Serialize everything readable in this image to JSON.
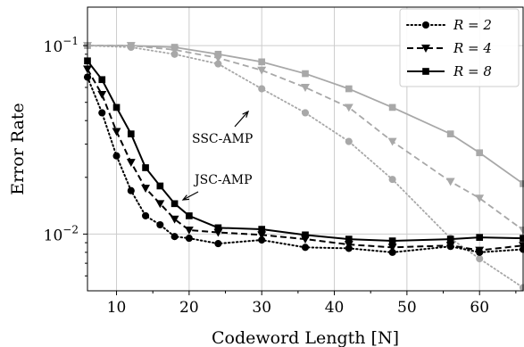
{
  "chart_data": {
    "type": "line",
    "title": "",
    "xlabel": "Codeword Length [N]",
    "ylabel": "Error Rate",
    "xlim": [
      6,
      66
    ],
    "ylim": [
      0.005,
      0.16
    ],
    "yscale": "log",
    "grid": true,
    "legend_position": "top-right",
    "x_ticks": [
      10,
      20,
      30,
      40,
      50,
      60
    ],
    "x_tick_labels": [
      "10",
      "20",
      "30",
      "40",
      "50",
      "60"
    ],
    "y_ticks": [
      0.01,
      0.1
    ],
    "y_tick_labels": [
      {
        "base": "10",
        "exp": "−2"
      },
      {
        "base": "10",
        "exp": "−1"
      }
    ],
    "legend": [
      {
        "label": "R = 2",
        "marker": "circle",
        "dash": "dotted"
      },
      {
        "label": "R = 4",
        "marker": "triangle-down",
        "dash": "dashed"
      },
      {
        "label": "R = 8",
        "marker": "square",
        "dash": "solid"
      }
    ],
    "annotations": [
      {
        "text": "SSC-AMP",
        "x": 30,
        "y": 0.06
      },
      {
        "text": "JSC-AMP",
        "x": 20,
        "y": 0.013
      }
    ],
    "colors": {
      "jsc": "#000000",
      "ssc": "#a8a8a8",
      "grid": "#cccccc"
    },
    "series": [
      {
        "group": "JSC-AMP",
        "legend_index": 0,
        "marker": "circle",
        "dash": "dotted",
        "x": [
          6,
          8,
          10,
          12,
          14,
          16,
          18,
          20,
          24,
          30,
          36,
          42,
          48,
          56,
          60,
          66
        ],
        "y": [
          0.068,
          0.044,
          0.026,
          0.017,
          0.0125,
          0.0112,
          0.0097,
          0.0095,
          0.0089,
          0.0093,
          0.0085,
          0.0084,
          0.008,
          0.0086,
          0.008,
          0.0083
        ]
      },
      {
        "group": "JSC-AMP",
        "legend_index": 1,
        "marker": "triangle-down",
        "dash": "dashed",
        "x": [
          6,
          8,
          10,
          12,
          14,
          16,
          18,
          20,
          24,
          30,
          36,
          42,
          48,
          56,
          60,
          66
        ],
        "y": [
          0.075,
          0.055,
          0.035,
          0.024,
          0.0175,
          0.0145,
          0.012,
          0.0105,
          0.0102,
          0.0099,
          0.0094,
          0.0088,
          0.0085,
          0.0087,
          0.0082,
          0.0087
        ]
      },
      {
        "group": "JSC-AMP",
        "legend_index": 2,
        "marker": "square",
        "dash": "solid",
        "x": [
          6,
          8,
          10,
          12,
          14,
          16,
          18,
          20,
          24,
          30,
          36,
          42,
          48,
          56,
          60,
          66
        ],
        "y": [
          0.083,
          0.066,
          0.047,
          0.034,
          0.0225,
          0.018,
          0.0145,
          0.0125,
          0.0108,
          0.0106,
          0.0099,
          0.0094,
          0.0092,
          0.0094,
          0.0096,
          0.0095
        ]
      },
      {
        "group": "SSC-AMP",
        "marker": "circle",
        "dash": "dotted",
        "x": [
          6,
          12,
          18,
          24,
          30,
          36,
          42,
          48,
          56,
          60,
          66
        ],
        "y": [
          0.1,
          0.098,
          0.09,
          0.08,
          0.059,
          0.044,
          0.031,
          0.0195,
          0.0095,
          0.0074,
          0.0052
        ]
      },
      {
        "group": "SSC-AMP",
        "marker": "triangle-down",
        "dash": "dashed",
        "x": [
          6,
          12,
          18,
          24,
          30,
          36,
          42,
          48,
          56,
          60,
          66
        ],
        "y": [
          0.1,
          0.1,
          0.095,
          0.086,
          0.074,
          0.06,
          0.047,
          0.031,
          0.019,
          0.0155,
          0.0105
        ]
      },
      {
        "group": "SSC-AMP",
        "marker": "square",
        "dash": "solid",
        "x": [
          6,
          12,
          18,
          24,
          30,
          36,
          42,
          48,
          56,
          60,
          66
        ],
        "y": [
          0.1,
          0.1,
          0.098,
          0.09,
          0.082,
          0.071,
          0.059,
          0.047,
          0.034,
          0.027,
          0.0185
        ]
      }
    ]
  }
}
